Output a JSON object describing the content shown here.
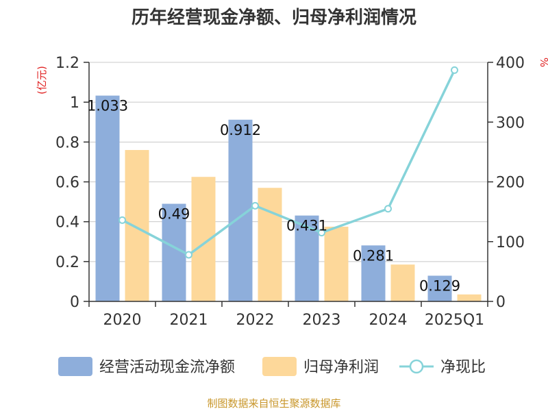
{
  "chart_data": {
    "type": "bar",
    "title": "历年经营现金净额、归母净利润情况",
    "categories": [
      "2020",
      "2021",
      "2022",
      "2023",
      "2024",
      "2025Q1"
    ],
    "y_left": {
      "unit": "(亿元)",
      "ylim": [
        0,
        1.2
      ],
      "ticks": [
        "0",
        "0.2",
        "0.4",
        "0.6",
        "0.8",
        "1",
        "1.2"
      ]
    },
    "y_right": {
      "unit": "%",
      "ylim": [
        0,
        400
      ],
      "ticks": [
        "0",
        "100",
        "200",
        "300",
        "400"
      ]
    },
    "series": [
      {
        "name": "经营活动现金流净额",
        "type": "bar",
        "axis": "left",
        "color": "#8eaedb",
        "values": [
          1.033,
          0.49,
          0.912,
          0.431,
          0.281,
          0.129
        ],
        "labels": [
          "1.033",
          "0.49",
          "0.912",
          "0.431",
          "0.281",
          "0.129"
        ]
      },
      {
        "name": "归母净利润",
        "type": "bar",
        "axis": "left",
        "color": "#fdd89a",
        "values": [
          0.76,
          0.625,
          0.57,
          0.375,
          0.185,
          0.035
        ]
      },
      {
        "name": "净现比",
        "type": "line",
        "axis": "right",
        "color": "#86d3d9",
        "values": [
          136,
          78,
          160,
          115,
          155,
          387
        ]
      }
    ],
    "grid": true,
    "legend_position": "bottom"
  },
  "footer": {
    "source": "制图数据来自恒生聚源数据库"
  }
}
